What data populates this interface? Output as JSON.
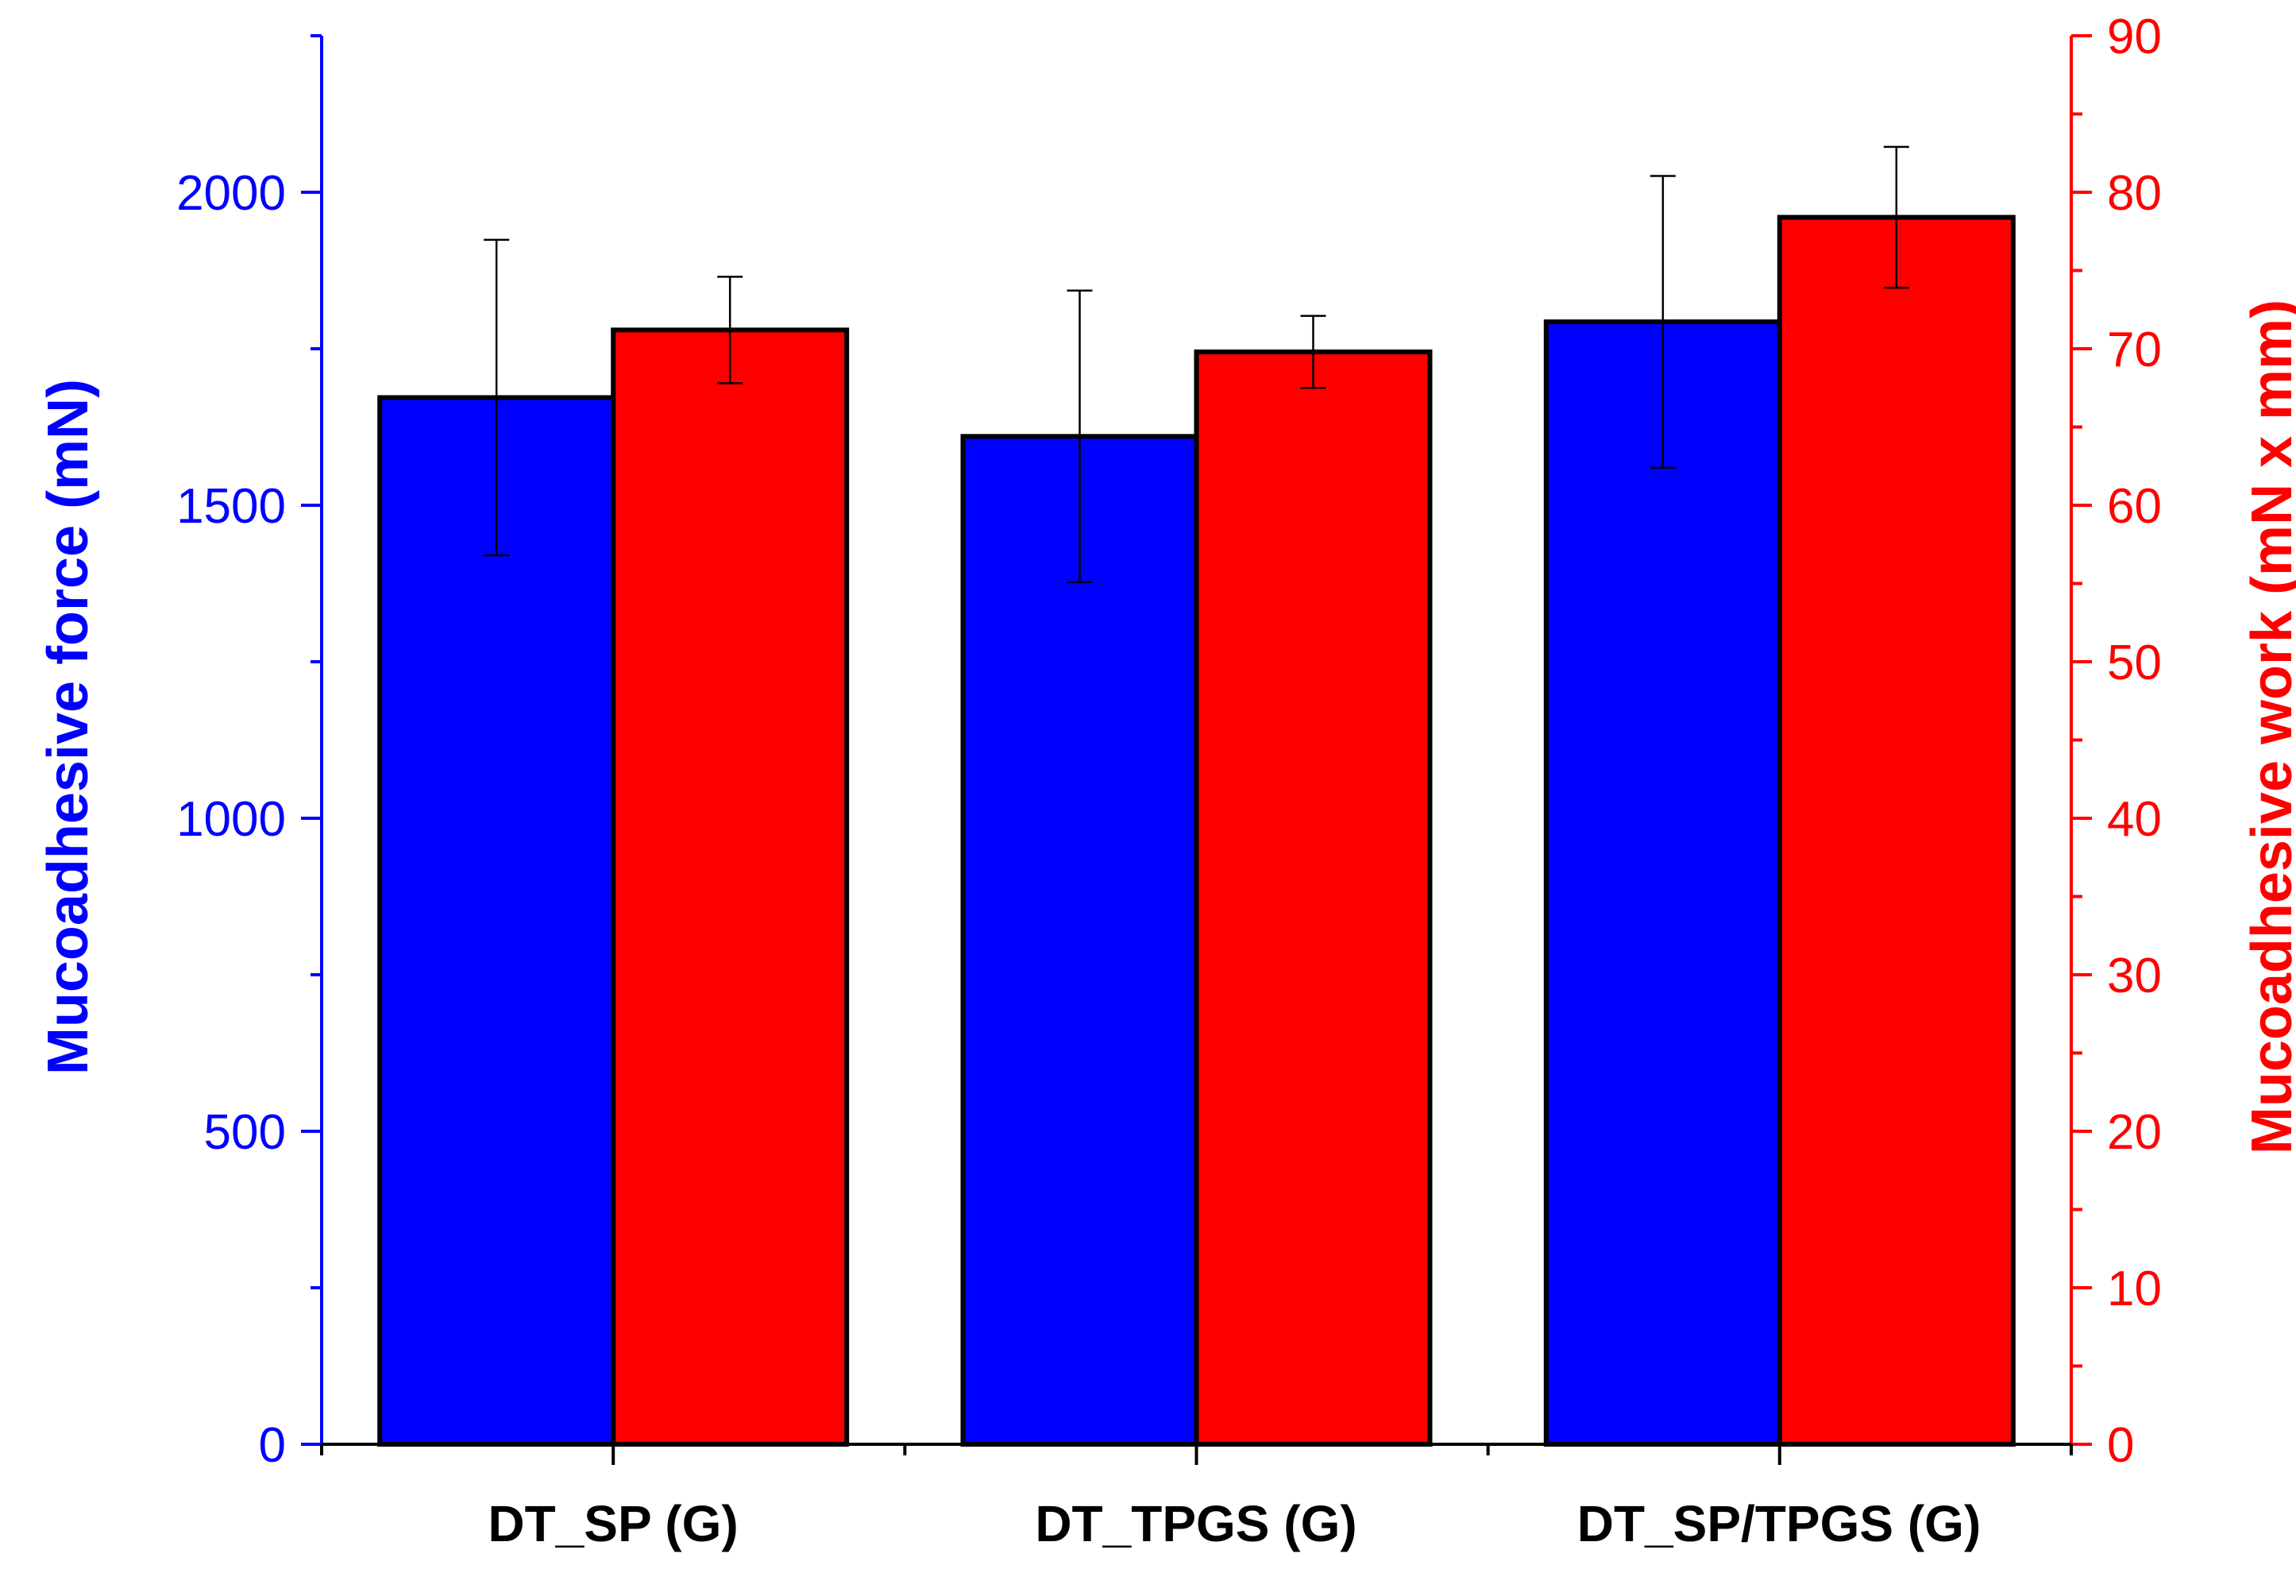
{
  "chart_data": {
    "type": "bar",
    "categories": [
      "DT_SP (G)",
      "DT_TPGS (G)",
      "DT_SP/TPGS (G)"
    ],
    "series": [
      {
        "values": [
          1672,
          1610,
          1793
        ],
        "errors": [
          252,
          233,
          233
        ],
        "axis": "left",
        "color": "#0000ff"
      },
      {
        "values": [
          71.2,
          69.8,
          78.4
        ],
        "errors": [
          3.4,
          2.3,
          4.5
        ],
        "axis": "right",
        "color": "#ff0000"
      }
    ],
    "ylabel": "Mucoadhesive force (mN)",
    "y2label": "Mucoadhesive work (mN x mm)",
    "ylim": [
      0,
      2250
    ],
    "y2lim": [
      0,
      90
    ],
    "yticks": [
      0,
      500,
      1000,
      1500,
      2000
    ],
    "y2ticks": [
      0,
      10,
      20,
      30,
      40,
      50,
      60,
      70,
      80,
      90
    ],
    "left_axis_color": "#0000ff",
    "right_axis_color": "#ff0000",
    "grid": false,
    "legend": "none"
  }
}
